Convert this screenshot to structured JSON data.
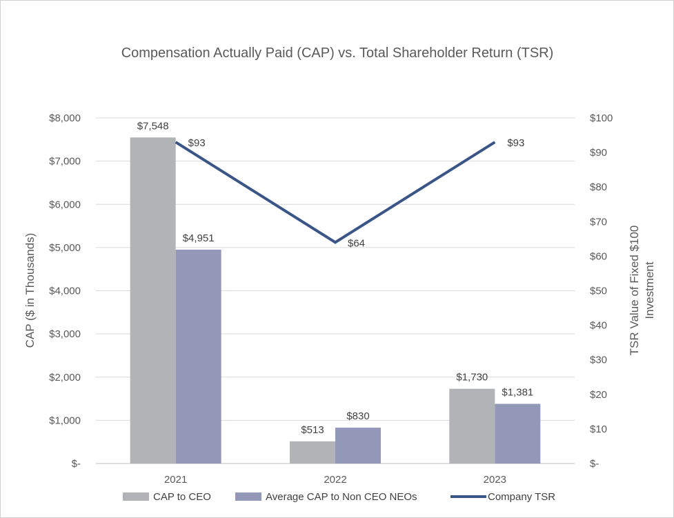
{
  "chart_data": {
    "type": "bar",
    "title": "Compensation Actually Paid (CAP) vs. Total Shareholder Return (TSR)",
    "categories": [
      "2021",
      "2022",
      "2023"
    ],
    "series": [
      {
        "name": "CAP to  CEO",
        "type": "bar",
        "axis": "left",
        "color": "#b1b3b6",
        "values": [
          7548,
          513,
          1730
        ],
        "labels": [
          "$7,548",
          "$513",
          "$1,730"
        ]
      },
      {
        "name": "Average CAP to Non CEO NEOs",
        "type": "bar",
        "axis": "left",
        "color": "#9498b8",
        "values": [
          4951,
          830,
          1381
        ],
        "labels": [
          "$4,951",
          "$830",
          "$1,381"
        ]
      },
      {
        "name": "Company TSR",
        "type": "line",
        "axis": "right",
        "color": "#3a5689",
        "values": [
          93,
          64,
          93
        ],
        "labels": [
          "$93",
          "$64",
          "$93"
        ]
      }
    ],
    "ylabel": "CAP ($ in Thousands)",
    "ylim": [
      0,
      8000
    ],
    "yticks": [
      0,
      1000,
      2000,
      3000,
      4000,
      5000,
      6000,
      7000,
      8000
    ],
    "ytick_labels": [
      "$-",
      "$1,000",
      "$2,000",
      "$3,000",
      "$4,000",
      "$5,000",
      "$6,000",
      "$7,000",
      "$8,000"
    ],
    "y2label_lines": [
      "TSR Value of Fixed $100",
      "Investment"
    ],
    "y2lim": [
      0,
      100
    ],
    "y2ticks": [
      0,
      10,
      20,
      30,
      40,
      50,
      60,
      70,
      80,
      90,
      100
    ],
    "y2tick_labels": [
      "$-",
      "$10",
      "$20",
      "$30",
      "$40",
      "$50",
      "$60",
      "$70",
      "$80",
      "$90",
      "$100"
    ],
    "grid": true,
    "legend_position": "bottom"
  }
}
